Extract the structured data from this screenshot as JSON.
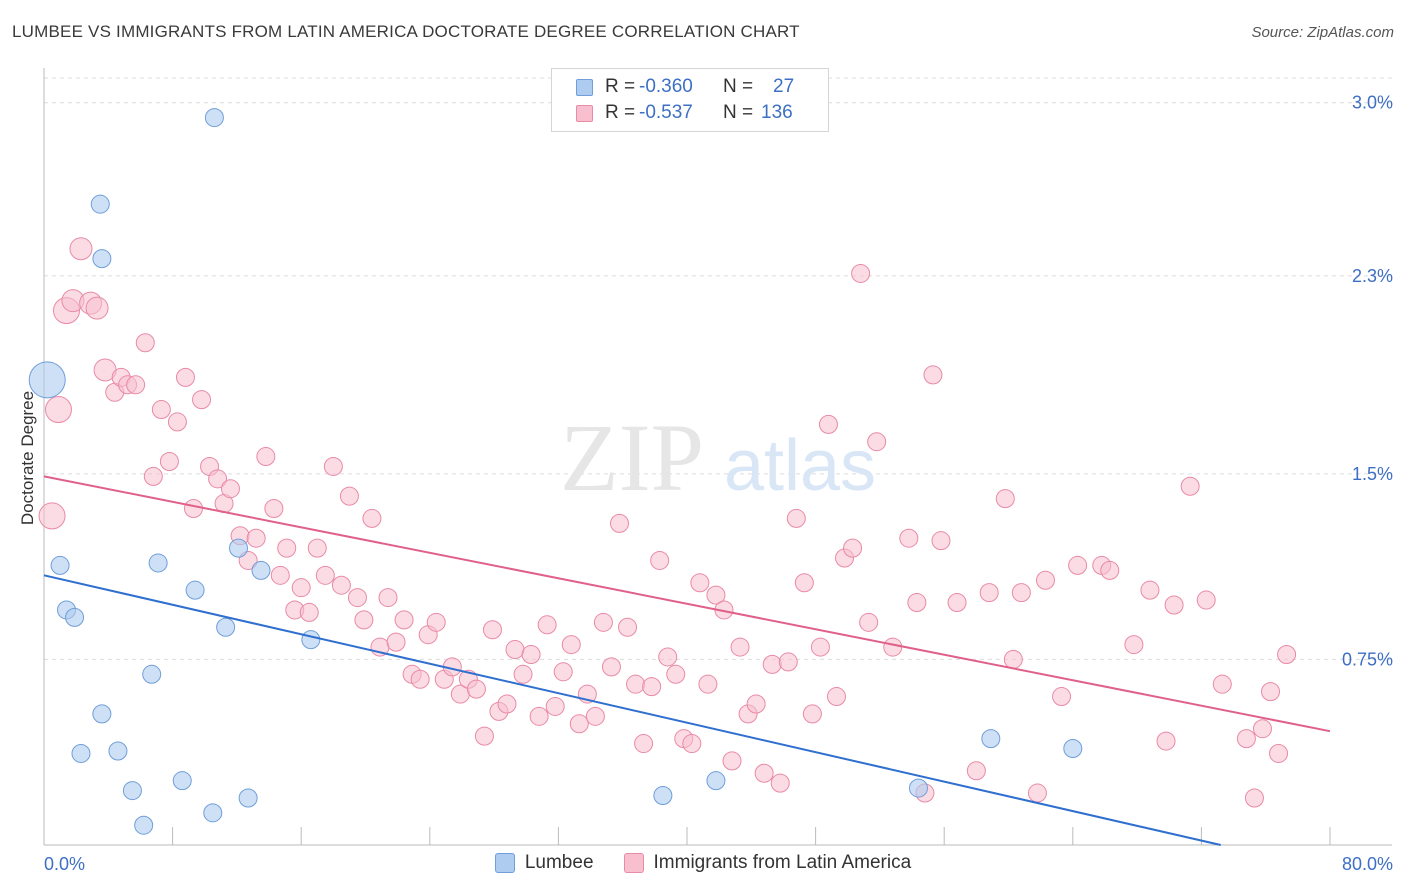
{
  "title": "LUMBEE VS IMMIGRANTS FROM LATIN AMERICA DOCTORATE DEGREE CORRELATION CHART",
  "source": "Source: ZipAtlas.com",
  "watermark": {
    "zip": "ZIP",
    "atlas": "atlas"
  },
  "legend": {
    "rows": [
      {
        "r_label": "R =",
        "r_value": "-0.360",
        "n_label": "N =",
        "n_value": "27"
      },
      {
        "r_label": "R =",
        "r_value": "-0.537",
        "n_label": "N =",
        "n_value": "136"
      }
    ]
  },
  "colors": {
    "lumbee_fill": "#aecbf0",
    "lumbee_stroke": "#6f9ed8",
    "lumbee_line": "#2e6fcf",
    "latin_fill": "#f8c0cf",
    "latin_stroke": "#e98aa6",
    "latin_line": "#e0608a",
    "grid": "#dcdcdc",
    "axis_text": "#3d6fc4"
  },
  "chart_data": {
    "type": "scatter",
    "title": "LUMBEE VS IMMIGRANTS FROM LATIN AMERICA DOCTORATE DEGREE CORRELATION CHART",
    "xlabel": "",
    "ylabel": "Doctorate Degree",
    "xlim": [
      0,
      80
    ],
    "ylim": [
      0,
      3.1
    ],
    "x_tick_labels": [
      "0.0%",
      "80.0%"
    ],
    "y_ticks": [
      0.75,
      1.5,
      2.3,
      3.0
    ],
    "y_tick_labels": [
      "0.75%",
      "1.5%",
      "2.3%",
      "3.0%"
    ],
    "grid": true,
    "legend_position": "bottom",
    "series": [
      {
        "name": "Lumbee",
        "r": -0.36,
        "n": 27,
        "trend": {
          "x": [
            0,
            73.2
          ],
          "y": [
            1.09,
            0.0
          ]
        },
        "points": [
          [
            0.2,
            1.88,
            18
          ],
          [
            1.0,
            1.13,
            9
          ],
          [
            1.4,
            0.95,
            9
          ],
          [
            1.9,
            0.92,
            9
          ],
          [
            2.3,
            0.37,
            9
          ],
          [
            3.5,
            2.59,
            9
          ],
          [
            3.6,
            0.53,
            9
          ],
          [
            3.6,
            2.37,
            9
          ],
          [
            4.6,
            0.38,
            9
          ],
          [
            5.5,
            0.22,
            9
          ],
          [
            6.2,
            0.08,
            9
          ],
          [
            6.7,
            0.69,
            9
          ],
          [
            7.1,
            1.14,
            9
          ],
          [
            8.6,
            0.26,
            9
          ],
          [
            9.4,
            1.03,
            9
          ],
          [
            10.5,
            0.13,
            9
          ],
          [
            10.6,
            2.94,
            9
          ],
          [
            11.3,
            0.88,
            9
          ],
          [
            12.1,
            1.2,
            9
          ],
          [
            12.7,
            0.19,
            9
          ],
          [
            13.5,
            1.11,
            9
          ],
          [
            16.6,
            0.83,
            9
          ],
          [
            38.5,
            0.2,
            9
          ],
          [
            41.8,
            0.26,
            9
          ],
          [
            54.4,
            0.23,
            9
          ],
          [
            58.9,
            0.43,
            9
          ],
          [
            64.0,
            0.39,
            9
          ]
        ]
      },
      {
        "name": "Immigrants from Latin America",
        "r": -0.537,
        "n": 136,
        "trend": {
          "x": [
            0,
            80
          ],
          "y": [
            1.49,
            0.46
          ]
        },
        "points": [
          [
            0.5,
            1.33,
            13
          ],
          [
            0.9,
            1.76,
            13
          ],
          [
            1.4,
            2.16,
            13
          ],
          [
            1.8,
            2.2,
            11
          ],
          [
            2.3,
            2.41,
            11
          ],
          [
            2.9,
            2.19,
            11
          ],
          [
            3.3,
            2.17,
            11
          ],
          [
            3.8,
            1.92,
            11
          ],
          [
            4.4,
            1.83,
            9
          ],
          [
            4.8,
            1.89,
            9
          ],
          [
            5.2,
            1.86,
            9
          ],
          [
            5.7,
            1.86,
            9
          ],
          [
            6.3,
            2.03,
            9
          ],
          [
            6.8,
            1.49,
            9
          ],
          [
            7.3,
            1.76,
            9
          ],
          [
            7.8,
            1.55,
            9
          ],
          [
            8.3,
            1.71,
            9
          ],
          [
            8.8,
            1.89,
            9
          ],
          [
            9.3,
            1.36,
            9
          ],
          [
            9.8,
            1.8,
            9
          ],
          [
            10.3,
            1.53,
            9
          ],
          [
            10.8,
            1.48,
            9
          ],
          [
            11.2,
            1.38,
            9
          ],
          [
            11.6,
            1.44,
            9
          ],
          [
            12.2,
            1.25,
            9
          ],
          [
            12.7,
            1.15,
            9
          ],
          [
            13.2,
            1.24,
            9
          ],
          [
            13.8,
            1.57,
            9
          ],
          [
            14.3,
            1.36,
            9
          ],
          [
            14.7,
            1.09,
            9
          ],
          [
            15.1,
            1.2,
            9
          ],
          [
            15.6,
            0.95,
            9
          ],
          [
            16.0,
            1.04,
            9
          ],
          [
            16.5,
            0.94,
            9
          ],
          [
            17.0,
            1.2,
            9
          ],
          [
            17.5,
            1.09,
            9
          ],
          [
            18.0,
            1.53,
            9
          ],
          [
            18.5,
            1.05,
            9
          ],
          [
            19.0,
            1.41,
            9
          ],
          [
            19.5,
            1.0,
            9
          ],
          [
            19.9,
            0.91,
            9
          ],
          [
            20.4,
            1.32,
            9
          ],
          [
            20.9,
            0.8,
            9
          ],
          [
            21.4,
            1.0,
            9
          ],
          [
            21.9,
            0.82,
            9
          ],
          [
            22.4,
            0.91,
            9
          ],
          [
            22.9,
            0.69,
            9
          ],
          [
            23.4,
            0.67,
            9
          ],
          [
            23.9,
            0.85,
            9
          ],
          [
            24.4,
            0.9,
            9
          ],
          [
            24.9,
            0.67,
            9
          ],
          [
            25.4,
            0.72,
            9
          ],
          [
            25.9,
            0.61,
            9
          ],
          [
            26.4,
            0.67,
            9
          ],
          [
            26.9,
            0.63,
            9
          ],
          [
            27.4,
            0.44,
            9
          ],
          [
            27.9,
            0.87,
            9
          ],
          [
            28.3,
            0.54,
            9
          ],
          [
            28.8,
            0.57,
            9
          ],
          [
            29.3,
            0.79,
            9
          ],
          [
            29.8,
            0.69,
            9
          ],
          [
            30.3,
            0.77,
            9
          ],
          [
            30.8,
            0.52,
            9
          ],
          [
            31.3,
            0.89,
            9
          ],
          [
            31.8,
            0.56,
            9
          ],
          [
            32.3,
            0.7,
            9
          ],
          [
            32.8,
            0.81,
            9
          ],
          [
            33.3,
            0.49,
            9
          ],
          [
            33.8,
            0.61,
            9
          ],
          [
            34.3,
            0.52,
            9
          ],
          [
            34.8,
            0.9,
            9
          ],
          [
            35.3,
            0.72,
            9
          ],
          [
            35.8,
            1.3,
            9
          ],
          [
            36.3,
            0.88,
            9
          ],
          [
            36.8,
            0.65,
            9
          ],
          [
            37.3,
            0.41,
            9
          ],
          [
            37.8,
            0.64,
            9
          ],
          [
            38.3,
            1.15,
            9
          ],
          [
            38.8,
            0.76,
            9
          ],
          [
            39.3,
            0.69,
            9
          ],
          [
            39.8,
            0.43,
            9
          ],
          [
            40.3,
            0.41,
            9
          ],
          [
            40.8,
            1.06,
            9
          ],
          [
            41.3,
            0.65,
            9
          ],
          [
            41.8,
            1.01,
            9
          ],
          [
            42.3,
            0.95,
            9
          ],
          [
            42.8,
            0.34,
            9
          ],
          [
            43.3,
            0.8,
            9
          ],
          [
            43.8,
            0.53,
            9
          ],
          [
            44.3,
            0.57,
            9
          ],
          [
            44.8,
            0.29,
            9
          ],
          [
            45.3,
            0.73,
            9
          ],
          [
            45.8,
            0.25,
            9
          ],
          [
            46.3,
            0.74,
            9
          ],
          [
            46.8,
            1.32,
            9
          ],
          [
            47.3,
            1.06,
            9
          ],
          [
            47.8,
            0.53,
            9
          ],
          [
            48.3,
            0.8,
            9
          ],
          [
            48.8,
            1.7,
            9
          ],
          [
            49.3,
            0.6,
            9
          ],
          [
            49.8,
            1.16,
            9
          ],
          [
            50.3,
            1.2,
            9
          ],
          [
            50.8,
            2.31,
            9
          ],
          [
            51.3,
            0.9,
            9
          ],
          [
            51.8,
            1.63,
            9
          ],
          [
            52.8,
            0.8,
            9
          ],
          [
            53.8,
            1.24,
            9
          ],
          [
            54.3,
            0.98,
            9
          ],
          [
            54.8,
            0.21,
            9
          ],
          [
            55.3,
            1.9,
            9
          ],
          [
            55.8,
            1.23,
            9
          ],
          [
            56.8,
            0.98,
            9
          ],
          [
            58.0,
            0.3,
            9
          ],
          [
            58.8,
            1.02,
            9
          ],
          [
            59.8,
            1.4,
            9
          ],
          [
            60.3,
            0.75,
            9
          ],
          [
            60.8,
            1.02,
            9
          ],
          [
            61.8,
            0.21,
            9
          ],
          [
            62.3,
            1.07,
            9
          ],
          [
            63.3,
            0.6,
            9
          ],
          [
            64.3,
            1.13,
            9
          ],
          [
            65.8,
            1.13,
            9
          ],
          [
            66.3,
            1.11,
            9
          ],
          [
            67.8,
            0.81,
            9
          ],
          [
            68.8,
            1.03,
            9
          ],
          [
            69.8,
            0.42,
            9
          ],
          [
            70.3,
            0.97,
            9
          ],
          [
            71.3,
            1.45,
            9
          ],
          [
            72.3,
            0.99,
            9
          ],
          [
            73.3,
            0.65,
            9
          ],
          [
            74.8,
            0.43,
            9
          ],
          [
            75.3,
            0.19,
            9
          ],
          [
            75.8,
            0.47,
            9
          ],
          [
            76.3,
            0.62,
            9
          ],
          [
            76.8,
            0.37,
            9
          ],
          [
            77.3,
            0.77,
            9
          ]
        ]
      }
    ]
  }
}
